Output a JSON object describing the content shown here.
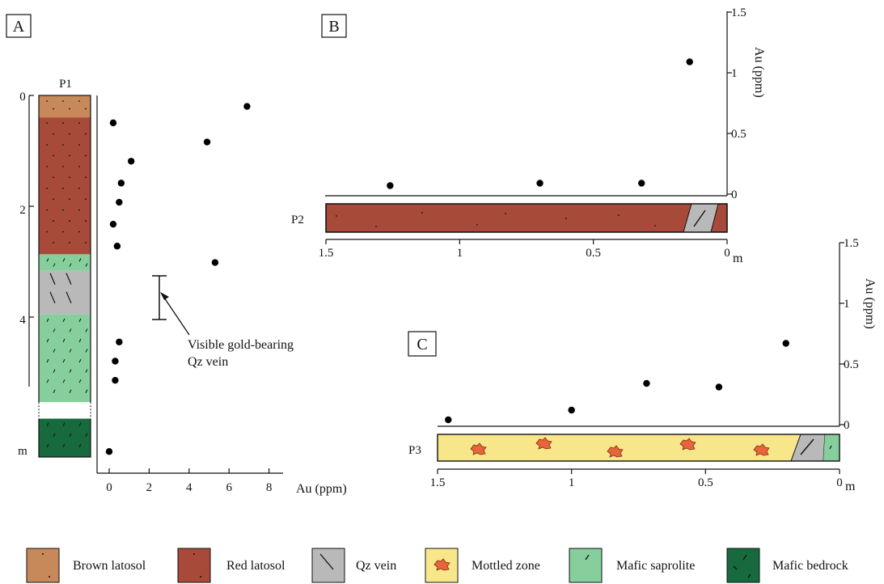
{
  "panels": {
    "A": {
      "label": "A",
      "profile_label": "P1",
      "depth_unit": "m",
      "depth_ticks": [
        "0",
        "2",
        "4"
      ],
      "layers": [
        {
          "top": 0,
          "bottom": 0.4,
          "legend_key": "brown_latosol"
        },
        {
          "top": 0.4,
          "bottom": 2.9,
          "legend_key": "red_latosol"
        },
        {
          "top": 2.9,
          "bottom": 3.2,
          "legend_key": "mafic_saprolite"
        },
        {
          "top": 3.2,
          "bottom": 4.0,
          "legend_key": "qz_vein"
        },
        {
          "top": 4.0,
          "bottom": 5.6,
          "legend_key": "mafic_saprolite"
        },
        {
          "top": 5.6,
          "bottom": 5.9,
          "legend_key": "gap"
        },
        {
          "top": 5.9,
          "bottom": 6.6,
          "legend_key": "mafic_bedrock"
        }
      ],
      "annotation": [
        "Visible gold-bearing",
        "Qz vein"
      ]
    },
    "B": {
      "label": "B",
      "profile_label": "P2",
      "distance_unit": "m"
    },
    "C": {
      "label": "C",
      "profile_label": "P3",
      "distance_unit": "m"
    }
  },
  "chart_data": [
    {
      "type": "scatter",
      "panel": "A",
      "xlabel": "Au (ppm)",
      "x_ticks": [
        "0",
        "2",
        "4",
        "6",
        "8"
      ],
      "xlim": [
        -0.6,
        8.9
      ],
      "ylim": [
        0,
        6.6
      ],
      "points": [
        {
          "au": 6.9,
          "depth": 0.2
        },
        {
          "au": 0.2,
          "depth": 0.5
        },
        {
          "au": 4.9,
          "depth": 0.85
        },
        {
          "au": 1.1,
          "depth": 1.2
        },
        {
          "au": 0.6,
          "depth": 1.6
        },
        {
          "au": 0.5,
          "depth": 1.95
        },
        {
          "au": 0.2,
          "depth": 2.35
        },
        {
          "au": 0.4,
          "depth": 2.75
        },
        {
          "au": 5.3,
          "depth": 3.05
        },
        {
          "au": 0.5,
          "depth": 4.5
        },
        {
          "au": 0.3,
          "depth": 4.85
        },
        {
          "au": 0.3,
          "depth": 5.2
        },
        {
          "au": 0.0,
          "depth": 6.5
        }
      ]
    },
    {
      "type": "scatter",
      "panel": "B",
      "ylabel": "Au (ppm)",
      "y_ticks": [
        "1.5",
        "1",
        "0.5",
        "0"
      ],
      "x_ticks": [
        "1.5",
        "1",
        "0.5",
        "0"
      ],
      "xlim": [
        1.5,
        0
      ],
      "ylim": [
        0,
        1.5
      ],
      "points": [
        {
          "distance": 1.26,
          "au": 0.03
        },
        {
          "distance": 0.7,
          "au": 0.05
        },
        {
          "distance": 0.32,
          "au": 0.05
        },
        {
          "distance": 0.14,
          "au": 1.05
        }
      ]
    },
    {
      "type": "scatter",
      "panel": "C",
      "ylabel": "Au (ppm)",
      "y_ticks": [
        "1.5",
        "1",
        "0.5",
        "0"
      ],
      "x_ticks": [
        "1.5",
        "1",
        "0.5",
        "0"
      ],
      "xlim": [
        1.5,
        0
      ],
      "ylim": [
        0,
        1.5
      ],
      "points": [
        {
          "distance": 1.46,
          "au": 0.0
        },
        {
          "distance": 1.0,
          "au": 0.08
        },
        {
          "distance": 0.72,
          "au": 0.3
        },
        {
          "distance": 0.45,
          "au": 0.27
        },
        {
          "distance": 0.2,
          "au": 0.63
        }
      ]
    }
  ],
  "legend": [
    {
      "key": "brown_latosol",
      "label": "Brown latosol",
      "color": "#c8895a",
      "pattern": "dots"
    },
    {
      "key": "red_latosol",
      "label": "Red latosol",
      "color": "#a84a3a",
      "pattern": "dots"
    },
    {
      "key": "qz_vein",
      "label": "Qz vein",
      "color": "#b9b9b9",
      "pattern": "slash"
    },
    {
      "key": "mottled_zone",
      "label": "Mottled zone",
      "color": "#f8e78a",
      "pattern": "mottle"
    },
    {
      "key": "mafic_saprolite",
      "label": "Mafic saprolite",
      "color": "#86cf9c",
      "pattern": "ticks"
    },
    {
      "key": "mafic_bedrock",
      "label": "Mafic bedrock",
      "color": "#176a3d",
      "pattern": "ticks"
    }
  ]
}
